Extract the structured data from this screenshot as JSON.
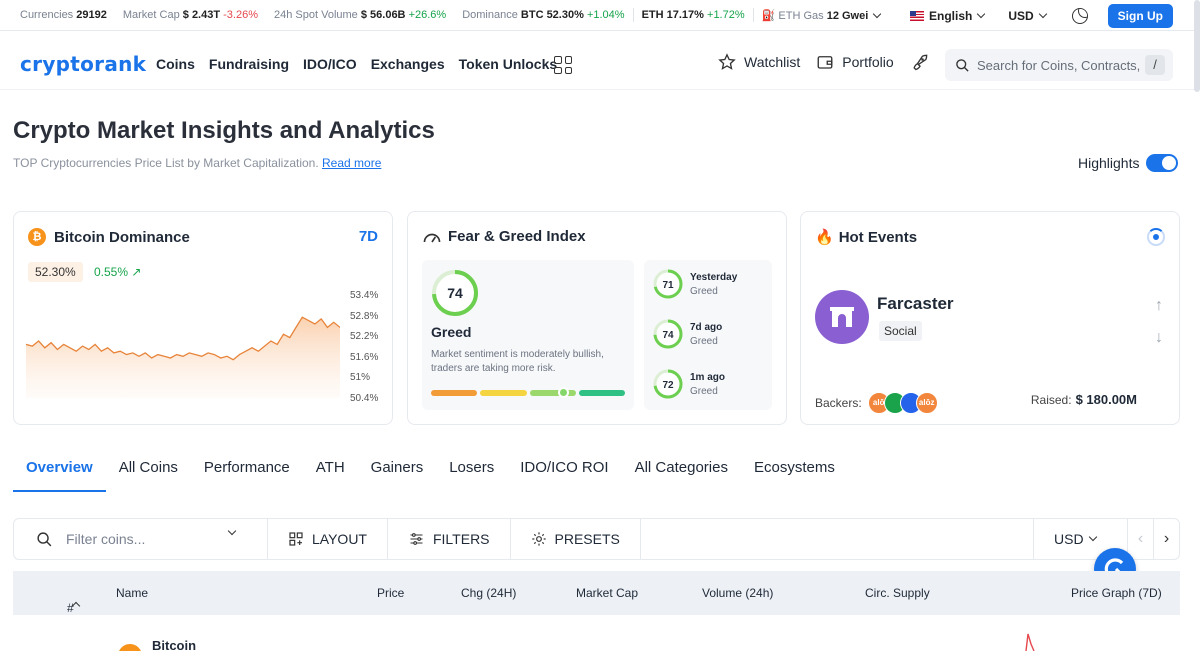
{
  "topbar": {
    "currencies_label": "Currencies",
    "currencies": "29192",
    "mcap_label": "Market Cap",
    "mcap": "$ 2.43T",
    "mcap_chg": "-3.26%",
    "vol_label": "24h Spot Volume",
    "vol": "$ 56.06B",
    "vol_chg": "+26.6%",
    "dom_label": "Dominance",
    "btc_dom": "BTC 52.30%",
    "btc_dom_chg": "+1.04%",
    "eth_dom": "ETH 17.17%",
    "eth_dom_chg": "+1.72%",
    "gas_label": "ETH Gas",
    "gas": "12 Gwei",
    "language": "English",
    "currency": "USD",
    "signup": "Sign Up"
  },
  "nav": {
    "logo": "cryptorank",
    "links": [
      "Coins",
      "Fundraising",
      "IDO/ICO",
      "Exchanges",
      "Token Unlocks"
    ],
    "watchlist": "Watchlist",
    "portfolio": "Portfolio",
    "search_placeholder": "Search for Coins, Contracts, ...",
    "search_key": "/"
  },
  "header": {
    "title": "Crypto Market Insights and Analytics",
    "subtitle": "TOP Cryptocurrencies Price List by Market Capitalization.",
    "read_more": "Read more",
    "highlights": "Highlights"
  },
  "btc_dominance": {
    "title": "Bitcoin Dominance",
    "range": "7D",
    "value": "52.30%",
    "change": "0.55% ↗",
    "yticks": [
      "53.4%",
      "52.8%",
      "52.2%",
      "51.6%",
      "51%",
      "50.4%"
    ],
    "series": [
      51.8,
      51.75,
      51.9,
      51.7,
      51.85,
      51.65,
      51.8,
      51.7,
      51.6,
      51.75,
      51.65,
      51.8,
      51.6,
      51.7,
      51.55,
      51.6,
      51.5,
      51.55,
      51.45,
      51.55,
      51.4,
      51.5,
      51.45,
      51.4,
      51.5,
      51.45,
      51.55,
      51.5,
      51.45,
      51.55,
      51.5,
      51.4,
      51.45,
      51.35,
      51.5,
      51.6,
      51.7,
      51.6,
      51.75,
      51.9,
      51.8,
      52.1,
      52.0,
      52.3,
      52.6,
      52.5,
      52.4,
      52.55,
      52.3,
      52.45,
      52.3
    ]
  },
  "fear_greed": {
    "title": "Fear & Greed Index",
    "value": "74",
    "label": "Greed",
    "description": "Market sentiment is moderately bullish, traders are taking more risk.",
    "history": [
      {
        "value": "71",
        "period": "Yesterday",
        "label": "Greed"
      },
      {
        "value": "74",
        "period": "7d ago",
        "label": "Greed"
      },
      {
        "value": "72",
        "period": "1m ago",
        "label": "Greed"
      }
    ]
  },
  "hot_events": {
    "title": "Hot Events",
    "project": "Farcaster",
    "tag": "Social",
    "backers_label": "Backers:",
    "backer_logos": [
      "alō",
      "",
      "",
      "alōz"
    ],
    "raised_label": "Raised:",
    "raised": "$ 180.00M"
  },
  "tabs": [
    "Overview",
    "All Coins",
    "Performance",
    "ATH",
    "Gainers",
    "Losers",
    "IDO/ICO ROI",
    "All Categories",
    "Ecosystems"
  ],
  "toolbar": {
    "filter_placeholder": "Filter coins...",
    "layout": "LAYOUT",
    "filters": "FILTERS",
    "presets": "PRESETS",
    "currency": "USD"
  },
  "table": {
    "columns": [
      "#",
      "Name",
      "Price",
      "Chg (24H)",
      "Market Cap",
      "Volume (24h)",
      "Circ. Supply",
      "Price Graph (7D)"
    ],
    "first_row_name": "Bitcoin"
  },
  "colors": {
    "accent": "#1a73e8",
    "negative": "#e5484d",
    "positive": "#16a34a",
    "btc": "#f7931a",
    "greed": "#6ccf4f"
  }
}
